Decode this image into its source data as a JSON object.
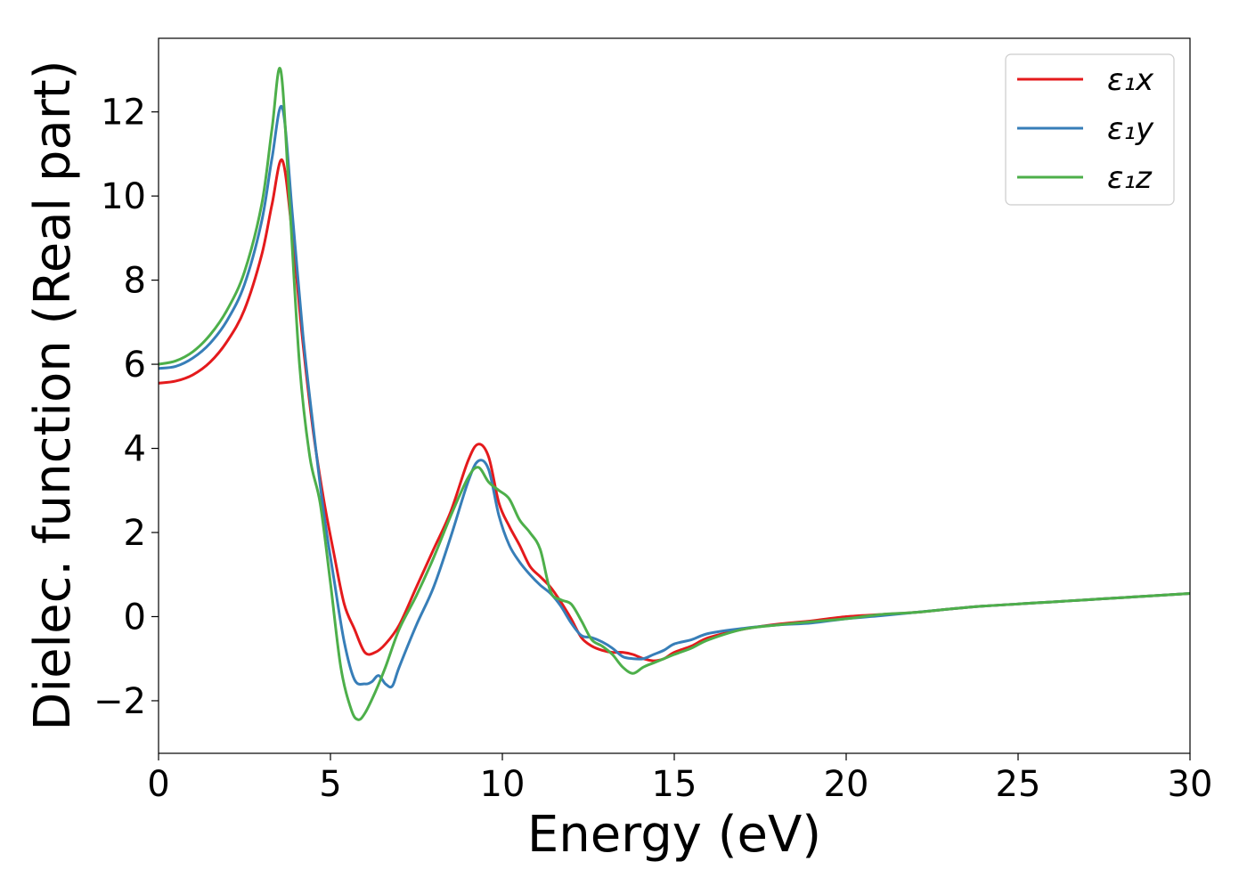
{
  "chart_data": {
    "type": "line",
    "title": "",
    "xlabel": "Energy (eV)",
    "ylabel": "Dielec. function (Real part)",
    "xlim": [
      0,
      30
    ],
    "ylim": [
      -3.25,
      13.75
    ],
    "xticks": [
      0,
      5,
      10,
      15,
      20,
      25,
      30
    ],
    "xtick_labels": [
      "0",
      "5",
      "10",
      "15",
      "20",
      "25",
      "30"
    ],
    "yticks": [
      -2,
      0,
      2,
      4,
      6,
      8,
      10,
      12
    ],
    "ytick_labels": [
      "−2",
      "0",
      "2",
      "4",
      "6",
      "8",
      "10",
      "12"
    ],
    "grid": false,
    "legend_position": "top-right",
    "series": [
      {
        "name": "ε₁x",
        "color": "#e41a1c",
        "x": [
          0,
          0.5,
          1,
          1.5,
          2,
          2.5,
          3,
          3.3,
          3.6,
          3.9,
          4.2,
          4.5,
          4.8,
          5.1,
          5.4,
          5.7,
          6.0,
          6.3,
          6.6,
          7.0,
          7.5,
          8.0,
          8.5,
          9.0,
          9.3,
          9.6,
          9.9,
          10.2,
          10.5,
          10.8,
          11.1,
          11.4,
          11.7,
          12.0,
          12.3,
          12.6,
          12.9,
          13.2,
          13.5,
          13.8,
          14.1,
          14.4,
          14.7,
          15.0,
          15.5,
          16,
          17,
          18,
          19,
          20,
          21,
          22,
          23,
          24,
          25,
          26,
          27,
          28,
          29,
          30
        ],
        "values": [
          5.55,
          5.6,
          5.75,
          6.05,
          6.55,
          7.3,
          8.6,
          9.8,
          10.85,
          9.0,
          6.5,
          4.4,
          2.8,
          1.5,
          0.3,
          -0.3,
          -0.85,
          -0.85,
          -0.65,
          -0.2,
          0.7,
          1.6,
          2.5,
          3.7,
          4.1,
          3.8,
          2.7,
          2.15,
          1.7,
          1.2,
          0.95,
          0.7,
          0.35,
          -0.05,
          -0.5,
          -0.7,
          -0.8,
          -0.85,
          -0.85,
          -0.9,
          -1.0,
          -1.05,
          -1.0,
          -0.85,
          -0.7,
          -0.5,
          -0.3,
          -0.18,
          -0.1,
          0.0,
          0.05,
          0.1,
          0.18,
          0.25,
          0.3,
          0.35,
          0.4,
          0.45,
          0.5,
          0.55
        ]
      },
      {
        "name": "ε₁y",
        "color": "#377eb8",
        "x": [
          0,
          0.5,
          1,
          1.5,
          2,
          2.5,
          3,
          3.3,
          3.6,
          3.9,
          4.2,
          4.5,
          4.8,
          5.1,
          5.4,
          5.7,
          6.0,
          6.2,
          6.4,
          6.6,
          6.8,
          7.0,
          7.5,
          8.0,
          8.5,
          9.0,
          9.3,
          9.6,
          9.9,
          10.2,
          10.5,
          10.8,
          11.1,
          11.4,
          11.7,
          12.0,
          12.3,
          12.6,
          12.9,
          13.2,
          13.5,
          13.8,
          14.1,
          14.4,
          14.7,
          15.0,
          15.5,
          16,
          17,
          18,
          19,
          20,
          21,
          22,
          23,
          24,
          25,
          26,
          27,
          28,
          29,
          30
        ],
        "values": [
          5.9,
          5.95,
          6.15,
          6.5,
          7.05,
          7.9,
          9.4,
          10.9,
          12.1,
          9.5,
          6.7,
          4.5,
          2.5,
          0.9,
          -0.6,
          -1.5,
          -1.6,
          -1.55,
          -1.4,
          -1.6,
          -1.65,
          -1.2,
          -0.2,
          0.7,
          1.9,
          3.2,
          3.7,
          3.5,
          2.4,
          1.7,
          1.3,
          1.0,
          0.75,
          0.55,
          0.25,
          -0.15,
          -0.45,
          -0.5,
          -0.6,
          -0.75,
          -0.95,
          -1.0,
          -1.0,
          -0.9,
          -0.8,
          -0.65,
          -0.55,
          -0.4,
          -0.28,
          -0.2,
          -0.15,
          -0.05,
          0.02,
          0.1,
          0.18,
          0.25,
          0.3,
          0.35,
          0.4,
          0.45,
          0.5,
          0.55
        ]
      },
      {
        "name": "ε₁z",
        "color": "#4daf4a",
        "x": [
          0,
          0.5,
          1,
          1.5,
          2,
          2.5,
          3,
          3.3,
          3.55,
          3.8,
          4.1,
          4.4,
          4.7,
          5.0,
          5.3,
          5.6,
          5.8,
          6.0,
          6.3,
          6.6,
          7.0,
          7.5,
          8.0,
          8.5,
          9.0,
          9.3,
          9.6,
          9.9,
          10.2,
          10.5,
          10.8,
          11.1,
          11.4,
          11.7,
          12.0,
          12.3,
          12.6,
          12.9,
          13.2,
          13.5,
          13.8,
          14.1,
          14.4,
          14.7,
          15.0,
          15.5,
          16,
          17,
          18,
          19,
          20,
          21,
          22,
          23,
          24,
          25,
          26,
          27,
          28,
          29,
          30
        ],
        "values": [
          6.0,
          6.08,
          6.3,
          6.7,
          7.3,
          8.2,
          9.8,
          11.6,
          13.0,
          10.0,
          6.0,
          3.8,
          2.7,
          0.8,
          -1.2,
          -2.2,
          -2.45,
          -2.3,
          -1.8,
          -1.2,
          -0.3,
          0.5,
          1.4,
          2.4,
          3.3,
          3.55,
          3.2,
          3.0,
          2.8,
          2.3,
          2.0,
          1.6,
          0.6,
          0.4,
          0.3,
          -0.1,
          -0.55,
          -0.7,
          -0.9,
          -1.2,
          -1.35,
          -1.2,
          -1.1,
          -1.0,
          -0.9,
          -0.75,
          -0.55,
          -0.3,
          -0.2,
          -0.12,
          -0.05,
          0.05,
          0.1,
          0.18,
          0.25,
          0.3,
          0.35,
          0.4,
          0.45,
          0.5,
          0.55
        ]
      }
    ]
  }
}
